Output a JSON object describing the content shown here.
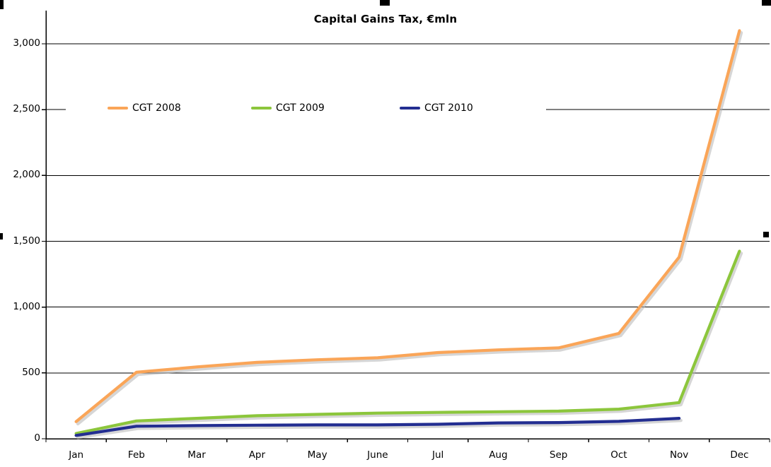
{
  "chart_data": {
    "type": "line",
    "title": "Capital Gains Tax, €mln",
    "categories": [
      "Jan",
      "Feb",
      "Mar",
      "Apr",
      "May",
      "June",
      "Jul",
      "Aug",
      "Sep",
      "Oct",
      "Nov",
      "Dec"
    ],
    "series": [
      {
        "name": "CGT 2008",
        "color": "#FAA558",
        "values": [
          130,
          505,
          545,
          580,
          600,
          615,
          655,
          675,
          690,
          800,
          1380,
          3100
        ]
      },
      {
        "name": "CGT 2009",
        "color": "#8CC63C",
        "values": [
          40,
          135,
          155,
          175,
          185,
          195,
          200,
          205,
          210,
          225,
          275,
          1425
        ]
      },
      {
        "name": "CGT 2010",
        "color": "#232E91",
        "values": [
          25,
          95,
          100,
          103,
          105,
          105,
          110,
          120,
          123,
          132,
          155,
          null
        ]
      }
    ],
    "xlabel": "",
    "ylabel": "",
    "ylim": [
      0,
      3000
    ],
    "ytick_interval": 500,
    "ytick_labels": [
      "0",
      "500",
      "1,000",
      "1,500",
      "2,000",
      "2,500",
      "3,000"
    ],
    "grid": "horizontal",
    "gridline_color": "#000000",
    "axis_color": "#000000",
    "shadow_color": "#b4b4b4",
    "legend_position": "inside-top-horizontal",
    "background": "#ffffff"
  },
  "selection": {
    "state": "chart-object-selected",
    "handle_color": "#000000"
  }
}
